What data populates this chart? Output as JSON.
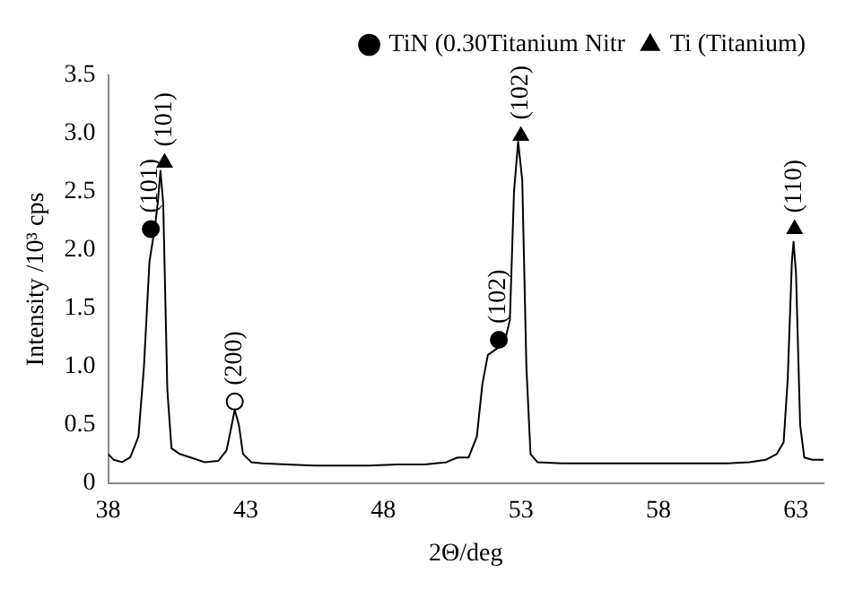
{
  "chart_data": {
    "type": "line",
    "xlabel": "2Θ/deg",
    "ylabel": "Intensity /10³ cps",
    "xlim": [
      38,
      64
    ],
    "xticks": [
      38,
      43,
      48,
      53,
      58,
      63
    ],
    "ylim": [
      0,
      3.5
    ],
    "yticks": [
      0,
      0.5,
      {
        "value": 1,
        "label": "1.0"
      },
      1.5,
      {
        "value": 2,
        "label": "2.0"
      },
      2.5,
      {
        "value": 3,
        "label": "3.0"
      },
      3.5
    ],
    "grid": false,
    "legend": "top right",
    "line_style": "solid",
    "series": [
      {
        "type": "line",
        "color": "#000000",
        "marker": "none",
        "x": [
          38,
          38.2,
          38.5,
          38.8,
          39.1,
          39.3,
          39.5,
          39.7,
          39.8,
          39.9,
          40.0,
          40.15,
          40.3,
          40.6,
          41.0,
          41.5,
          42.0,
          42.3,
          42.45,
          42.6,
          42.75,
          42.9,
          43.2,
          43.6,
          44.5,
          45.5,
          46.5,
          47.5,
          48.5,
          49.5,
          50.3,
          50.7,
          51.1,
          51.4,
          51.6,
          51.8,
          52.1,
          52.4,
          52.6,
          52.75,
          52.9,
          53.05,
          53.2,
          53.35,
          53.6,
          54.5,
          55.5,
          56.5,
          57.5,
          58.5,
          59.5,
          60.5,
          61.3,
          61.9,
          62.3,
          62.55,
          62.7,
          62.85,
          62.91,
          63.0,
          63.15,
          63.3,
          63.6,
          64
        ],
        "values": [
          0.25,
          0.2,
          0.18,
          0.22,
          0.4,
          1.0,
          1.9,
          2.2,
          2.4,
          2.68,
          2.4,
          0.8,
          0.3,
          0.25,
          0.22,
          0.18,
          0.19,
          0.28,
          0.45,
          0.63,
          0.5,
          0.25,
          0.18,
          0.17,
          0.16,
          0.15,
          0.15,
          0.15,
          0.16,
          0.16,
          0.18,
          0.22,
          0.22,
          0.4,
          0.85,
          1.1,
          1.15,
          1.2,
          1.4,
          2.5,
          2.93,
          2.6,
          1.0,
          0.25,
          0.18,
          0.17,
          0.17,
          0.17,
          0.17,
          0.17,
          0.17,
          0.17,
          0.18,
          0.2,
          0.25,
          0.35,
          0.9,
          1.9,
          2.07,
          1.8,
          0.5,
          0.22,
          0.2,
          0.2
        ]
      },
      {
        "type": "scatter",
        "name": "TiN (0.30Titanium Nitr",
        "color": "#000000",
        "marker": "circle",
        "x": [
          39.55,
          52.2
        ],
        "values": [
          2.18,
          1.23
        ]
      },
      {
        "type": "scatter",
        "name": "Ti (Titanium)",
        "color": "#000000",
        "marker": "triangle",
        "x": [
          40.05,
          53.0,
          62.95
        ],
        "values": [
          2.75,
          2.98,
          2.18
        ]
      },
      {
        "type": "scatter",
        "color": "#ffffff",
        "marker": "circle",
        "x": [
          42.6
        ],
        "values": [
          0.7
        ]
      }
    ],
    "annotations": [
      {
        "text": "(101)",
        "x": 39.55,
        "y": 2.18
      },
      {
        "text": "(101)",
        "x": 40.05,
        "y": 2.75
      },
      {
        "text": "(200)",
        "x": 42.6,
        "y": 0.7
      },
      {
        "text": "(102)",
        "x": 52.2,
        "y": 1.23
      },
      {
        "text": "(102)",
        "x": 53.0,
        "y": 2.98
      },
      {
        "text": "(110)",
        "x": 62.95,
        "y": 2.18
      }
    ]
  }
}
